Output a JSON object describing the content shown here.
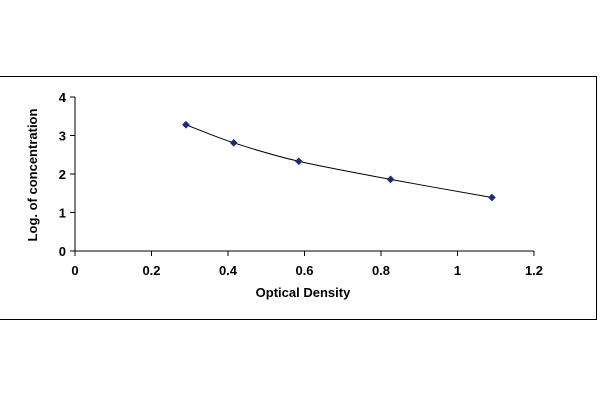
{
  "chart_data": {
    "type": "scatter",
    "title": "",
    "xlabel": "Optical Density",
    "ylabel": "Log. of concentration",
    "xlim": [
      0,
      1.2
    ],
    "ylim": [
      0,
      4
    ],
    "x_ticks": [
      "0",
      "0.2",
      "0.4",
      "0.6",
      "0.8",
      "1",
      "1.2"
    ],
    "y_ticks": [
      "0",
      "1",
      "2",
      "3",
      "4"
    ],
    "grid": false,
    "legend": "none",
    "series": [
      {
        "x": [
          0.29,
          0.415,
          0.585,
          0.825,
          1.09
        ],
        "y": [
          3.28,
          2.81,
          2.33,
          1.86,
          1.39
        ],
        "marker": "diamond",
        "color": "#1f2b7a",
        "line": "smooth",
        "line_color": "#000000"
      }
    ]
  }
}
